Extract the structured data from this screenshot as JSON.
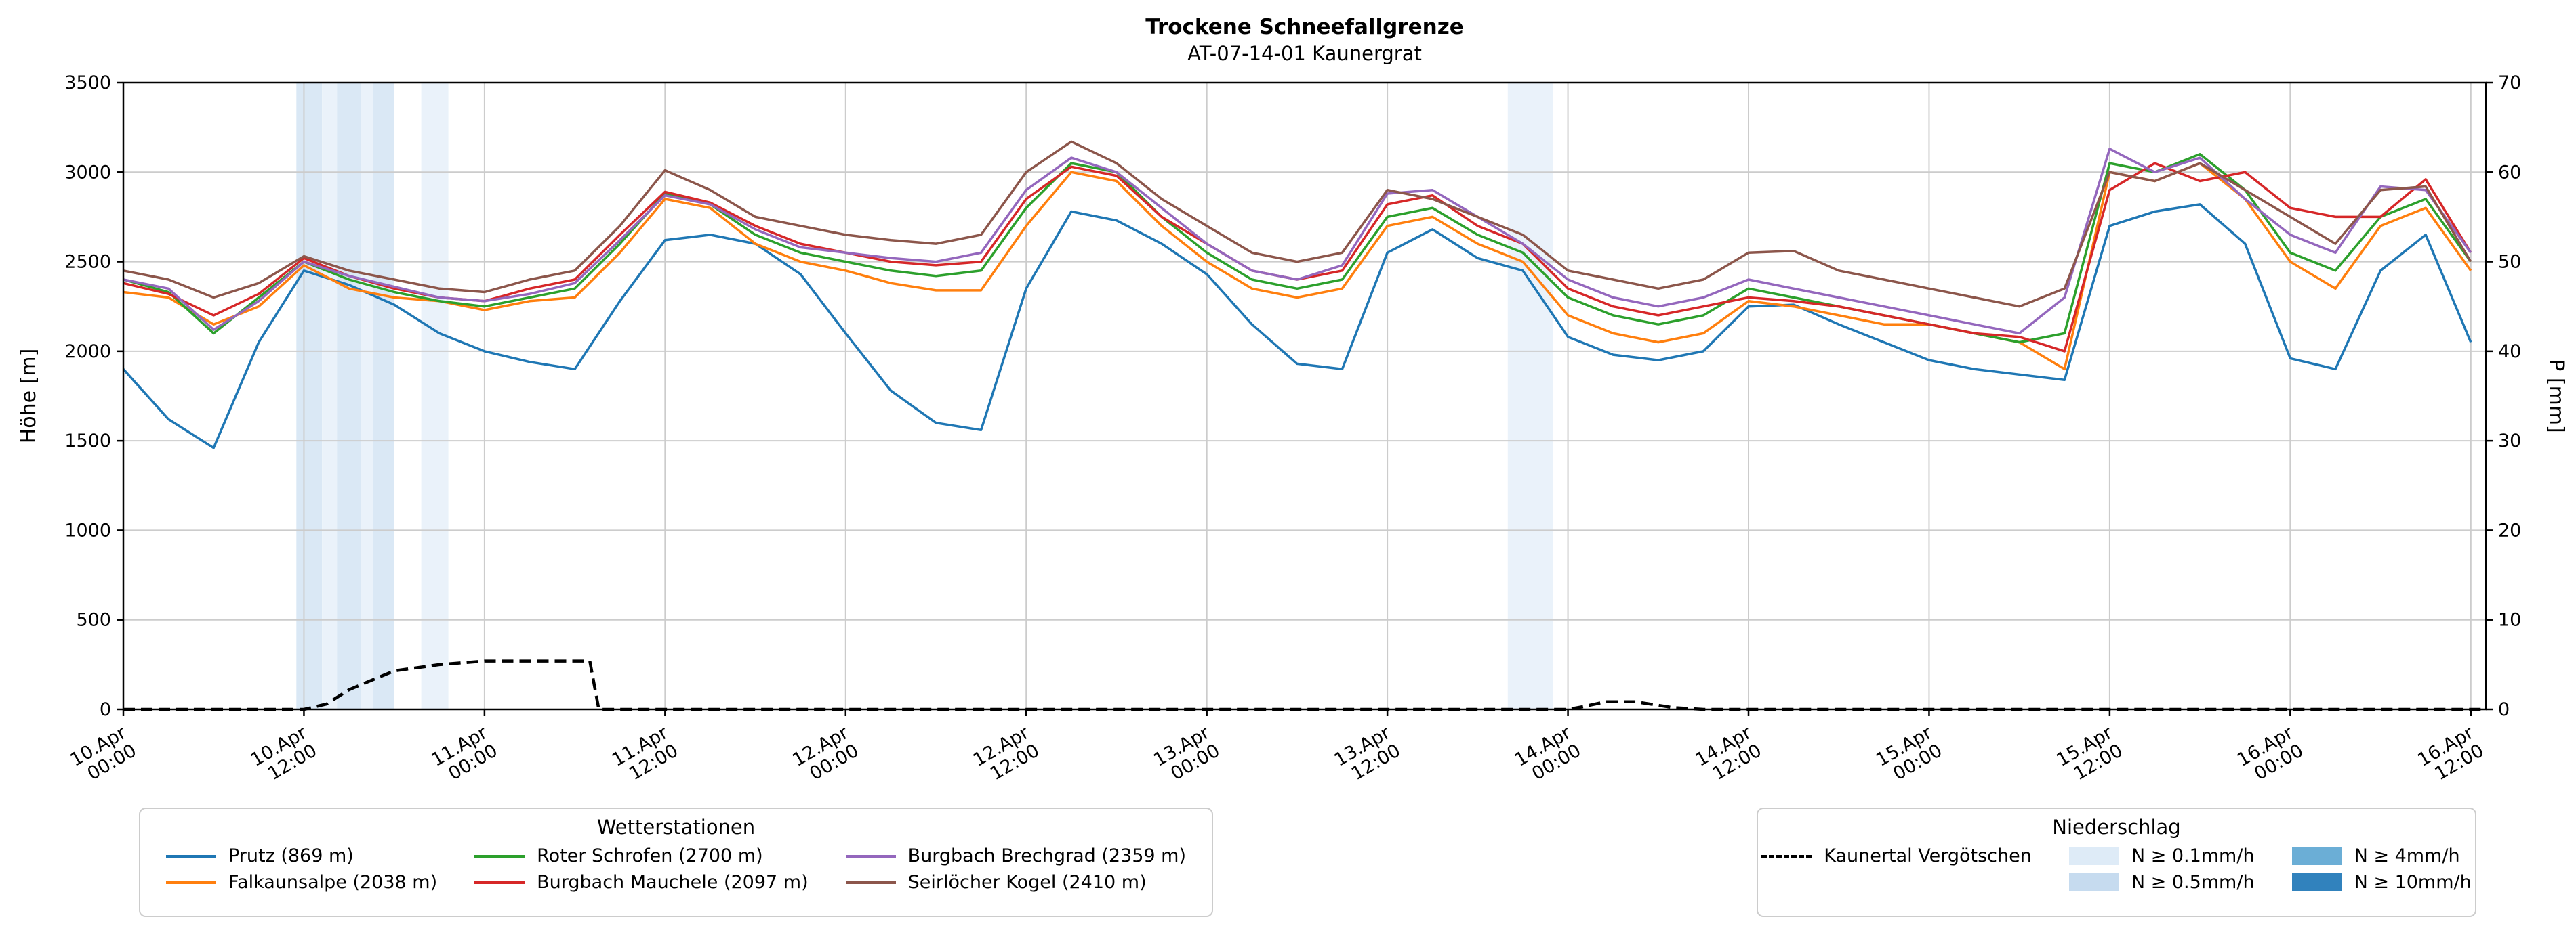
{
  "title": "Trockene Schneefallgrenze",
  "subtitle": "AT-07-14-01 Kaunergrat",
  "chart_data": {
    "type": "line",
    "title": "Trockene Schneefallgrenze",
    "subtitle": "AT-07-14-01 Kaunergrat",
    "grid": true,
    "x_unit": "hours since 10.Apr 00:00",
    "x_range": [
      0,
      157
    ],
    "x_ticks": [
      {
        "t": 0,
        "l1": "10.Apr",
        "l2": "00:00"
      },
      {
        "t": 12,
        "l1": "10.Apr",
        "l2": "12:00"
      },
      {
        "t": 24,
        "l1": "11.Apr",
        "l2": "00:00"
      },
      {
        "t": 36,
        "l1": "11.Apr",
        "l2": "12:00"
      },
      {
        "t": 48,
        "l1": "12.Apr",
        "l2": "00:00"
      },
      {
        "t": 60,
        "l1": "12.Apr",
        "l2": "12:00"
      },
      {
        "t": 72,
        "l1": "13.Apr",
        "l2": "00:00"
      },
      {
        "t": 84,
        "l1": "13.Apr",
        "l2": "12:00"
      },
      {
        "t": 96,
        "l1": "14.Apr",
        "l2": "00:00"
      },
      {
        "t": 108,
        "l1": "14.Apr",
        "l2": "12:00"
      },
      {
        "t": 120,
        "l1": "15.Apr",
        "l2": "00:00"
      },
      {
        "t": 132,
        "l1": "15.Apr",
        "l2": "12:00"
      },
      {
        "t": 144,
        "l1": "16.Apr",
        "l2": "00:00"
      },
      {
        "t": 156,
        "l1": "16.Apr",
        "l2": "12:00"
      }
    ],
    "y_left": {
      "label": "Höhe [m]",
      "range": [
        0,
        3500
      ],
      "ticks": [
        0,
        500,
        1000,
        1500,
        2000,
        2500,
        3000,
        3500
      ]
    },
    "y_right": {
      "label": "P [mm]",
      "range": [
        0,
        70
      ],
      "ticks": [
        0,
        10,
        20,
        30,
        40,
        50,
        60,
        70
      ]
    },
    "x": [
      0,
      3,
      6,
      9,
      12,
      15,
      18,
      21,
      24,
      27,
      30,
      33,
      36,
      39,
      42,
      45,
      48,
      51,
      54,
      57,
      60,
      63,
      66,
      69,
      72,
      75,
      78,
      81,
      84,
      87,
      90,
      93,
      96,
      99,
      102,
      105,
      108,
      111,
      114,
      117,
      120,
      123,
      126,
      129,
      132,
      135,
      138,
      141,
      144,
      147,
      150,
      153,
      156
    ],
    "series": [
      {
        "name": "Prutz (869 m)",
        "color": "#1f77b4",
        "axis": "left",
        "values": [
          1900,
          1620,
          1460,
          2050,
          2450,
          2370,
          2260,
          2100,
          2000,
          1940,
          1900,
          2280,
          2620,
          2650,
          2600,
          2430,
          2100,
          1780,
          1600,
          1560,
          2350,
          2780,
          2730,
          2600,
          2430,
          2150,
          1930,
          1900,
          2550,
          2680,
          2520,
          2450,
          2080,
          1980,
          1950,
          2000,
          2250,
          2260,
          2150,
          2050,
          1950,
          1900,
          1870,
          1840,
          2700,
          2780,
          2820,
          2600,
          1960,
          1900,
          2450,
          2650,
          2050
        ]
      },
      {
        "name": "Falkaunsalpe (2038 m)",
        "color": "#ff7f0e",
        "axis": "left",
        "values": [
          2330,
          2300,
          2150,
          2250,
          2480,
          2350,
          2300,
          2280,
          2230,
          2280,
          2300,
          2550,
          2850,
          2800,
          2600,
          2500,
          2450,
          2380,
          2340,
          2340,
          2700,
          3000,
          2950,
          2700,
          2500,
          2350,
          2300,
          2350,
          2700,
          2750,
          2600,
          2500,
          2200,
          2100,
          2050,
          2100,
          2280,
          2250,
          2200,
          2150,
          2150,
          2100,
          2050,
          1900,
          3000,
          2950,
          3050,
          2850,
          2500,
          2350,
          2700,
          2800,
          2450
        ]
      },
      {
        "name": "Roter Schrofen (2700 m)",
        "color": "#2ca02c",
        "axis": "left",
        "values": [
          2400,
          2330,
          2100,
          2300,
          2500,
          2400,
          2330,
          2280,
          2250,
          2300,
          2350,
          2600,
          2880,
          2820,
          2650,
          2550,
          2500,
          2450,
          2420,
          2450,
          2800,
          3050,
          3000,
          2750,
          2550,
          2400,
          2350,
          2400,
          2750,
          2800,
          2650,
          2550,
          2300,
          2200,
          2150,
          2200,
          2350,
          2300,
          2250,
          2200,
          2150,
          2100,
          2050,
          2100,
          3050,
          3000,
          3100,
          2900,
          2550,
          2450,
          2750,
          2850,
          2500
        ]
      },
      {
        "name": "Burgbach Mauchele (2097 m)",
        "color": "#d62728",
        "axis": "left",
        "values": [
          2380,
          2320,
          2200,
          2320,
          2520,
          2420,
          2350,
          2300,
          2280,
          2350,
          2400,
          2650,
          2890,
          2830,
          2700,
          2600,
          2550,
          2500,
          2480,
          2500,
          2850,
          3030,
          2980,
          2750,
          2600,
          2450,
          2400,
          2450,
          2820,
          2870,
          2700,
          2600,
          2350,
          2250,
          2200,
          2250,
          2300,
          2280,
          2250,
          2200,
          2150,
          2100,
          2080,
          2000,
          2900,
          3050,
          2950,
          3000,
          2800,
          2750,
          2750,
          2960,
          2550
        ]
      },
      {
        "name": "Burgbach Brechgrad (2359 m)",
        "color": "#9467bd",
        "axis": "left",
        "values": [
          2400,
          2350,
          2120,
          2280,
          2500,
          2420,
          2360,
          2300,
          2280,
          2320,
          2380,
          2620,
          2870,
          2820,
          2680,
          2580,
          2550,
          2520,
          2500,
          2550,
          2900,
          3080,
          3000,
          2800,
          2600,
          2450,
          2400,
          2480,
          2880,
          2900,
          2750,
          2600,
          2400,
          2300,
          2250,
          2300,
          2400,
          2350,
          2300,
          2250,
          2200,
          2150,
          2100,
          2300,
          3130,
          3000,
          3080,
          2850,
          2650,
          2550,
          2920,
          2900,
          2550
        ]
      },
      {
        "name": "Seirlöcher Kogel (2410 m)",
        "color": "#8c564b",
        "axis": "left",
        "values": [
          2450,
          2400,
          2300,
          2380,
          2530,
          2450,
          2400,
          2350,
          2330,
          2400,
          2450,
          2700,
          3010,
          2900,
          2750,
          2700,
          2650,
          2620,
          2600,
          2650,
          3000,
          3170,
          3050,
          2850,
          2700,
          2550,
          2500,
          2550,
          2900,
          2850,
          2750,
          2650,
          2450,
          2400,
          2350,
          2400,
          2550,
          2560,
          2450,
          2400,
          2350,
          2300,
          2250,
          2350,
          3000,
          2950,
          3050,
          2900,
          2750,
          2600,
          2900,
          2920,
          2500
        ]
      },
      {
        "name": "Kaunertal Vergötschen",
        "color": "#000000",
        "axis": "right",
        "style": "dashed",
        "x": [
          0,
          12,
          13.5,
          15,
          18,
          21,
          24,
          31,
          31.6,
          96,
          97,
          98.5,
          100.5,
          103,
          105,
          157
        ],
        "values": [
          0,
          0,
          0.6,
          2.2,
          4.3,
          5.0,
          5.4,
          5.4,
          0,
          0,
          0.3,
          0.85,
          0.85,
          0.2,
          0,
          0
        ]
      }
    ],
    "precip_bands": [
      {
        "start": 11.5,
        "end": 13.2,
        "level": "0.5"
      },
      {
        "start": 13.2,
        "end": 14.2,
        "level": "0.1"
      },
      {
        "start": 14.2,
        "end": 15.8,
        "level": "0.5"
      },
      {
        "start": 15.8,
        "end": 16.6,
        "level": "0.1"
      },
      {
        "start": 16.6,
        "end": 18.0,
        "level": "0.5"
      },
      {
        "start": 19.8,
        "end": 21.6,
        "level": "0.1"
      },
      {
        "start": 92.0,
        "end": 95.0,
        "level": "0.1"
      }
    ],
    "band_levels": [
      {
        "key": "0.1",
        "label": "N ≥ 0.1mm/h",
        "color": "#deebf7"
      },
      {
        "key": "0.5",
        "label": "N ≥ 0.5mm/h",
        "color": "#c6dbef"
      },
      {
        "key": "4",
        "label": "N ≥ 4mm/h",
        "color": "#6baed6"
      },
      {
        "key": "10",
        "label": "N ≥ 10mm/h",
        "color": "#3182bd"
      }
    ]
  },
  "legend_stations": {
    "title": "Wetterstationen"
  },
  "legend_precip": {
    "title": "Niederschlag"
  }
}
